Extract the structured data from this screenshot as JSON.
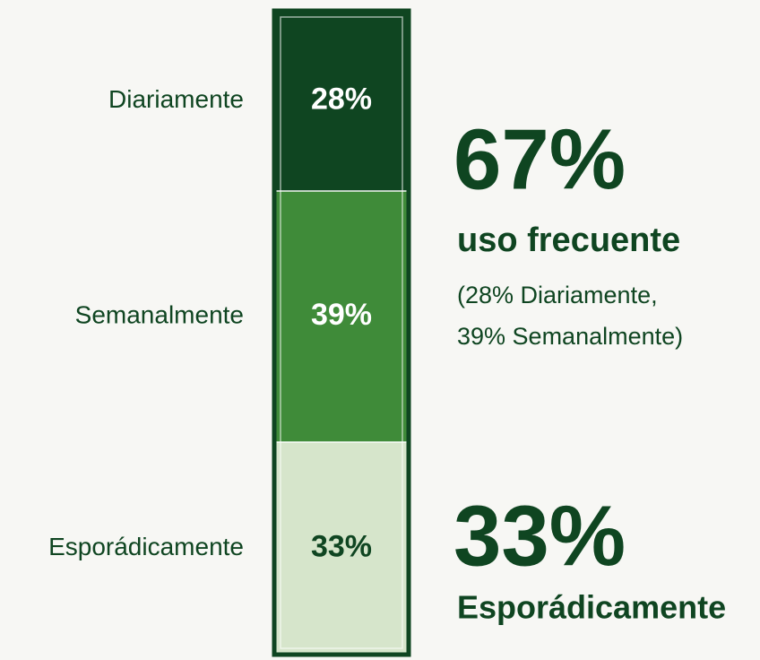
{
  "chart_data": {
    "type": "stacked_bar",
    "series": [
      {
        "name": "Diariamente",
        "color": "#0f4521",
        "label_color": "#ffffff",
        "values": [
          28
        ],
        "value_labels": [
          "28%"
        ]
      },
      {
        "name": "Semanalmente",
        "color": "#3f8b39",
        "label_color": "#ffffff",
        "values": [
          39
        ],
        "value_labels": [
          "39%"
        ]
      },
      {
        "name": "Esporádicamente",
        "color": "#d6e5cb",
        "label_color": "#0f4521",
        "values": [
          33
        ],
        "value_labels": [
          "33%"
        ]
      }
    ],
    "ylim": [
      0,
      100
    ],
    "annotations": [
      "67%",
      "uso frecuente",
      "(28% Diariamente,",
      "39% Semanalmente)",
      "33%",
      "Esporádicamente"
    ]
  }
}
